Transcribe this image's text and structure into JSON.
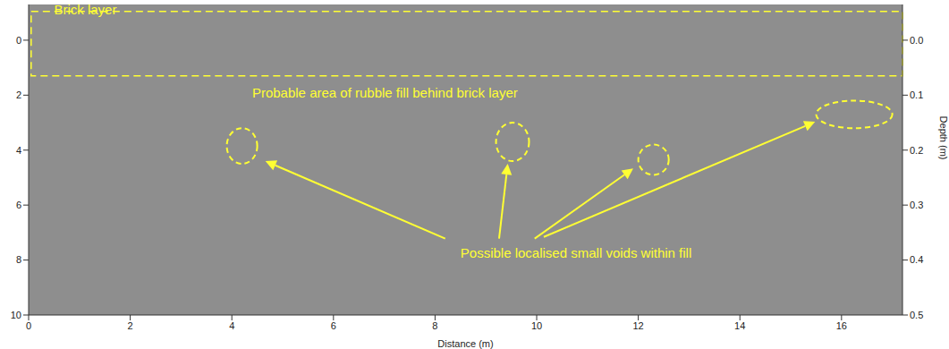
{
  "chart_data": {
    "type": "radargram",
    "x_label": "Distance (m)",
    "y2_label": "Depth (m)",
    "xlim": [
      0,
      17.2
    ],
    "xticks": [
      0,
      2,
      4,
      6,
      8,
      10,
      12,
      14,
      16
    ],
    "ylim": [
      -1.3,
      10
    ],
    "yticks": [
      0,
      2,
      4,
      6,
      8,
      10
    ],
    "y2lim": [
      -0.065,
      0.5
    ],
    "y2ticks": [
      {
        "value": 0,
        "label": "0.0"
      },
      {
        "value": 0.1,
        "label": "0.1"
      },
      {
        "value": 0.2,
        "label": "0.2"
      },
      {
        "value": 0.3,
        "label": "0.3"
      },
      {
        "value": 0.4,
        "label": "0.4"
      },
      {
        "value": 0.5,
        "label": "0.5"
      }
    ],
    "grid": false,
    "color": "#8e8e8e",
    "annotations": [
      {
        "text": "Brick layer",
        "at": [
          0.5,
          -0.95
        ],
        "box": {
          "x": [
            0.05,
            17.2
          ],
          "y": [
            -1.05,
            1.3
          ]
        }
      },
      {
        "text": "Probable area of rubble fill behind brick layer",
        "at": [
          4.4,
          2.1
        ]
      },
      {
        "text": "Possible localised small voids within fill",
        "at": [
          8.5,
          7.9
        ],
        "regions": [
          {
            "x": [
              3.9,
              4.5
            ],
            "y": [
              3.2,
              4.5
            ]
          },
          {
            "x": [
              9.2,
              9.85
            ],
            "y": [
              3.0,
              4.4
            ]
          },
          {
            "x": [
              12.0,
              12.6
            ],
            "y": [
              3.8,
              4.9
            ]
          },
          {
            "x": [
              15.5,
              17.0
            ],
            "y": [
              2.2,
              3.2
            ]
          }
        ],
        "arrows": [
          {
            "from": [
              8.2,
              7.22
            ],
            "to": [
              4.66,
              4.4
            ]
          },
          {
            "from": [
              9.26,
              7.22
            ],
            "to": [
              9.43,
              4.5
            ]
          },
          {
            "from": [
              9.96,
              7.22
            ],
            "to": [
              11.9,
              4.67
            ]
          },
          {
            "from": [
              10.14,
              7.16
            ],
            "to": [
              15.48,
              2.97
            ]
          }
        ]
      }
    ]
  }
}
